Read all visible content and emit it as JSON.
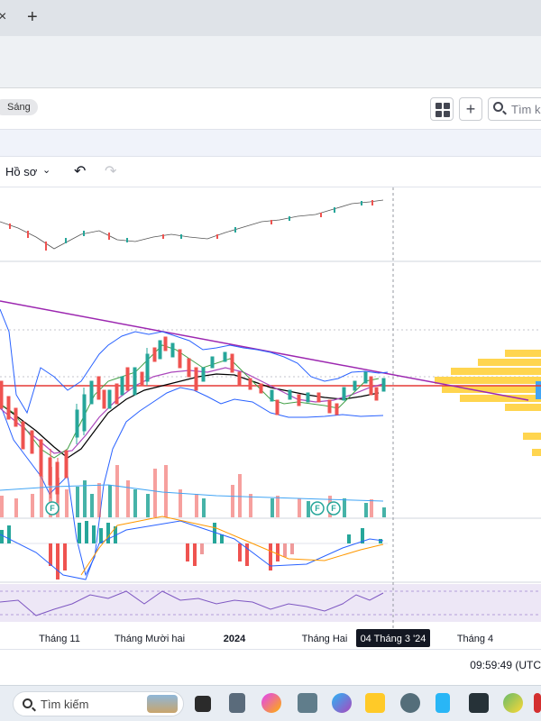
{
  "browser": {
    "new_tab": "+",
    "close_tab": "×"
  },
  "header": {
    "theme_label": "Sáng",
    "search_placeholder": "Tìm ki"
  },
  "toolbar": {
    "profile_label": "Hồ sơ",
    "undo": "↶",
    "redo": "↷"
  },
  "timeline": {
    "labels": [
      "Tháng 11",
      "Tháng Mười hai",
      "2024",
      "Tháng Hai",
      "04 Tháng 3 '24",
      "Tháng 4"
    ],
    "crosshair_label": "04 Tháng 3 '24"
  },
  "status": {
    "clock": "09:59:49 (UTC"
  },
  "taskbar": {
    "search_label": "Tìm kiếm",
    "apps": [
      "file-explorer-icon",
      "calculator-icon",
      "copilot-icon",
      "camera-icon",
      "paint-icon",
      "folder-icon",
      "settings-icon",
      "notepad-icon",
      "gaming-icon",
      "browser-icon"
    ]
  },
  "colors": {
    "up": "#26a69a",
    "down": "#ef5350",
    "bollinger": "#2962ff",
    "trendline": "#9c27b0",
    "horizontal_line": "#e53935",
    "volume_profile": "#ffd54f"
  },
  "chart_data": {
    "type": "candlestick",
    "title": "",
    "xlabel": "",
    "ylabel": "",
    "x": [
      "Tháng 11",
      "Tháng Mười hai",
      "2024",
      "Tháng Hai",
      "04 Tháng 3 '24",
      "Tháng 4"
    ],
    "markers": [
      "F",
      "F",
      "F"
    ],
    "indicators": [
      "bollinger-bands",
      "moving-averages",
      "volume",
      "macd",
      "rsi",
      "volume-profile"
    ],
    "grid": true
  }
}
